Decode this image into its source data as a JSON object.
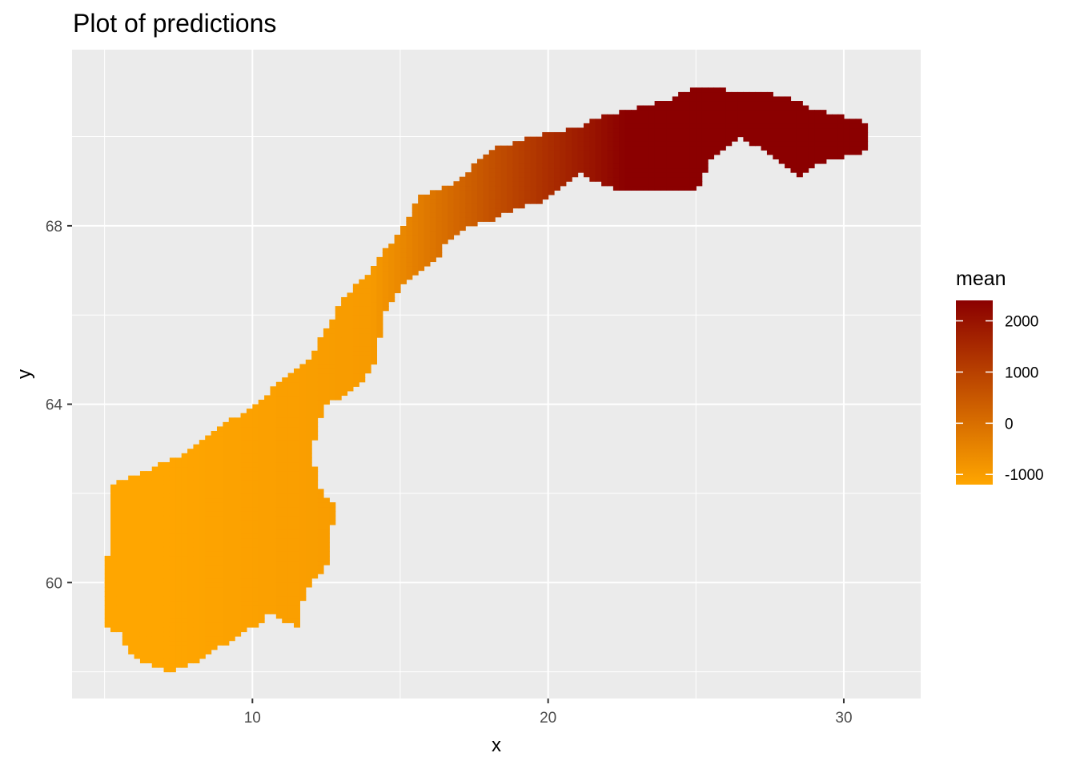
{
  "chart_data": {
    "type": "heatmap",
    "title": "Plot of predictions",
    "xlabel": "x",
    "ylabel": "y",
    "xlim": [
      3.9,
      32.6
    ],
    "ylim": [
      57.4,
      71.95
    ],
    "x_ticks": [
      10,
      20,
      30
    ],
    "y_ticks": [
      60,
      64,
      68
    ],
    "x_minor": [
      5,
      15,
      25
    ],
    "y_minor": [
      58,
      62,
      66,
      70
    ],
    "grid": true,
    "background": "#ebebeb",
    "legend": {
      "title": "mean",
      "position": "right",
      "range": [
        -1200,
        2400
      ],
      "ticks": [
        2000,
        1000,
        0,
        -1000
      ],
      "tick_labels": [
        "2000",
        "1000",
        "0",
        "-1000"
      ],
      "color_low": "#ffa600",
      "color_high": "#8b0000"
    },
    "region": "Norway",
    "cell_size": [
      0.2,
      0.1
    ],
    "outline": [
      [
        5.0,
        59.0
      ],
      [
        5.2,
        62.2
      ],
      [
        6.0,
        62.4
      ],
      [
        7.0,
        62.7
      ],
      [
        8.0,
        63.0
      ],
      [
        9.0,
        63.6
      ],
      [
        10.0,
        63.9
      ],
      [
        11.0,
        64.6
      ],
      [
        12.0,
        65.1
      ],
      [
        13.0,
        66.3
      ],
      [
        14.0,
        67.0
      ],
      [
        15.0,
        67.9
      ],
      [
        15.7,
        68.7
      ],
      [
        17.0,
        69.0
      ],
      [
        18.0,
        69.7
      ],
      [
        19.5,
        70.0
      ],
      [
        21.0,
        70.2
      ],
      [
        22.0,
        70.5
      ],
      [
        24.0,
        70.8
      ],
      [
        25.0,
        71.1
      ],
      [
        27.0,
        71.0
      ],
      [
        28.0,
        70.9
      ],
      [
        29.0,
        70.6
      ],
      [
        30.8,
        70.3
      ],
      [
        30.9,
        69.7
      ],
      [
        29.2,
        69.4
      ],
      [
        28.5,
        69.1
      ],
      [
        27.5,
        69.6
      ],
      [
        26.5,
        70.0
      ],
      [
        25.5,
        69.5
      ],
      [
        25.0,
        68.8
      ],
      [
        24.0,
        68.8
      ],
      [
        22.3,
        68.8
      ],
      [
        21.0,
        69.2
      ],
      [
        20.0,
        68.6
      ],
      [
        19.0,
        68.4
      ],
      [
        18.0,
        68.1
      ],
      [
        17.3,
        68.0
      ],
      [
        16.5,
        67.6
      ],
      [
        16.2,
        67.2
      ],
      [
        15.0,
        66.6
      ],
      [
        14.5,
        66.1
      ],
      [
        14.3,
        65.5
      ],
      [
        14.1,
        64.9
      ],
      [
        13.6,
        64.4
      ],
      [
        12.5,
        64.0
      ],
      [
        12.2,
        63.5
      ],
      [
        12.0,
        62.9
      ],
      [
        12.3,
        62.1
      ],
      [
        12.9,
        61.6
      ],
      [
        12.5,
        61.0
      ],
      [
        12.6,
        60.5
      ],
      [
        12.0,
        60.0
      ],
      [
        11.7,
        59.6
      ],
      [
        11.6,
        59.0
      ],
      [
        11.1,
        59.1
      ],
      [
        10.6,
        59.4
      ],
      [
        10.3,
        59.1
      ],
      [
        9.6,
        58.9
      ],
      [
        9.0,
        58.6
      ],
      [
        8.0,
        58.2
      ],
      [
        7.3,
        58.0
      ],
      [
        6.4,
        58.2
      ],
      [
        5.8,
        58.4
      ],
      [
        5.5,
        58.9
      ]
    ],
    "value_formula": "mean = -950 + 390 * max(0, x - 14) - 35 * max(0, 14 - x)"
  }
}
